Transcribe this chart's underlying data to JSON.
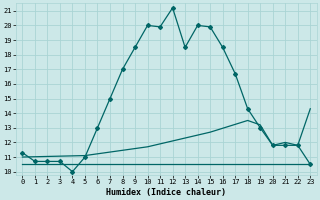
{
  "xlabel": "Humidex (Indice chaleur)",
  "background_color": "#cce8e8",
  "grid_color": "#aad4d4",
  "line_color": "#006666",
  "xlim": [
    -0.5,
    23.5
  ],
  "ylim": [
    9.8,
    21.5
  ],
  "yticks": [
    10,
    11,
    12,
    13,
    14,
    15,
    16,
    17,
    18,
    19,
    20,
    21
  ],
  "xticks": [
    0,
    1,
    2,
    3,
    4,
    5,
    6,
    7,
    8,
    9,
    10,
    11,
    12,
    13,
    14,
    15,
    16,
    17,
    18,
    19,
    20,
    21,
    22,
    23
  ],
  "line1_x": [
    0,
    1,
    2,
    3,
    4,
    5,
    6,
    7,
    8,
    9,
    10,
    11,
    12,
    13,
    14,
    15,
    16,
    17,
    18,
    19,
    20,
    21,
    22,
    23
  ],
  "line1_y": [
    11.3,
    10.7,
    10.7,
    10.7,
    10.0,
    11.0,
    13.0,
    15.0,
    17.0,
    18.5,
    20.0,
    19.9,
    21.2,
    18.5,
    20.0,
    19.9,
    18.5,
    16.7,
    14.3,
    13.0,
    11.8,
    11.8,
    11.8,
    10.5
  ],
  "line2_x": [
    0,
    23
  ],
  "line2_y": [
    10.5,
    10.5
  ],
  "line3_x": [
    0,
    5,
    10,
    15,
    18,
    19,
    20,
    21,
    22,
    23
  ],
  "line3_y": [
    11.0,
    11.1,
    11.7,
    12.7,
    13.5,
    13.2,
    11.8,
    12.0,
    11.8,
    14.3
  ]
}
